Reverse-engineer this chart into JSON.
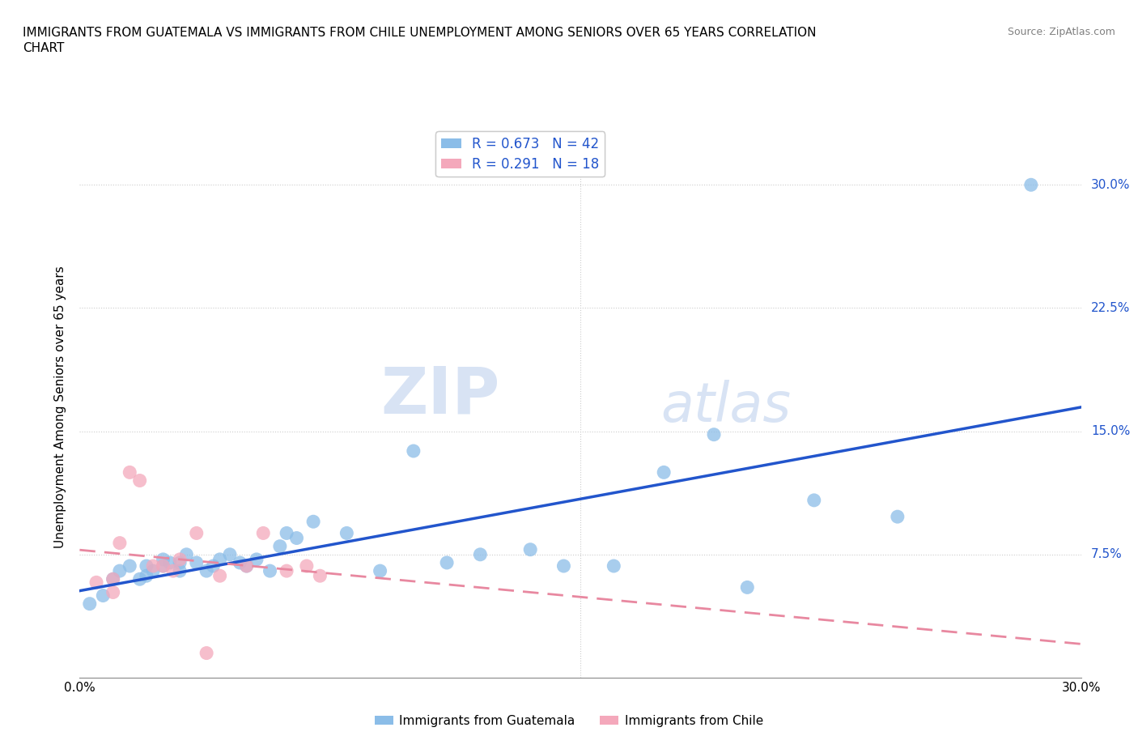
{
  "title": "IMMIGRANTS FROM GUATEMALA VS IMMIGRANTS FROM CHILE UNEMPLOYMENT AMONG SENIORS OVER 65 YEARS CORRELATION\nCHART",
  "source": "Source: ZipAtlas.com",
  "ylabel": "Unemployment Among Seniors over 65 years",
  "xlim": [
    0.0,
    0.3
  ],
  "ylim": [
    0.0,
    0.33
  ],
  "x_ticks": [
    0.0,
    0.05,
    0.1,
    0.15,
    0.2,
    0.25,
    0.3
  ],
  "y_ticks_right": [
    0.075,
    0.15,
    0.225,
    0.3
  ],
  "y_tick_labels_right": [
    "7.5%",
    "15.0%",
    "22.5%",
    "30.0%"
  ],
  "guatemala_color": "#8BBDE8",
  "chile_color": "#F4A8BB",
  "guatemala_line_color": "#2255CC",
  "chile_line_color": "#E888A0",
  "guatemala_R": 0.673,
  "guatemala_N": 42,
  "chile_R": 0.291,
  "chile_N": 18,
  "background_color": "#ffffff",
  "grid_color": "#cccccc",
  "watermark_zip": "ZIP",
  "watermark_atlas": "atlas",
  "legend_label_guatemala": "Immigrants from Guatemala",
  "legend_label_chile": "Immigrants from Chile",
  "guatemala_x": [
    0.003,
    0.007,
    0.01,
    0.012,
    0.015,
    0.018,
    0.02,
    0.02,
    0.022,
    0.025,
    0.025,
    0.027,
    0.03,
    0.03,
    0.032,
    0.035,
    0.038,
    0.04,
    0.042,
    0.045,
    0.048,
    0.05,
    0.053,
    0.057,
    0.06,
    0.062,
    0.065,
    0.07,
    0.08,
    0.09,
    0.1,
    0.11,
    0.12,
    0.135,
    0.145,
    0.16,
    0.175,
    0.19,
    0.2,
    0.22,
    0.245,
    0.285
  ],
  "guatemala_y": [
    0.045,
    0.05,
    0.06,
    0.065,
    0.068,
    0.06,
    0.062,
    0.068,
    0.065,
    0.068,
    0.072,
    0.07,
    0.065,
    0.07,
    0.075,
    0.07,
    0.065,
    0.068,
    0.072,
    0.075,
    0.07,
    0.068,
    0.072,
    0.065,
    0.08,
    0.088,
    0.085,
    0.095,
    0.088,
    0.065,
    0.138,
    0.07,
    0.075,
    0.078,
    0.068,
    0.068,
    0.125,
    0.148,
    0.055,
    0.108,
    0.098,
    0.3
  ],
  "chile_x": [
    0.005,
    0.01,
    0.012,
    0.015,
    0.018,
    0.022,
    0.025,
    0.028,
    0.03,
    0.035,
    0.038,
    0.042,
    0.05,
    0.055,
    0.062,
    0.068,
    0.072,
    0.01
  ],
  "chile_y": [
    0.058,
    0.06,
    0.082,
    0.125,
    0.12,
    0.068,
    0.068,
    0.065,
    0.072,
    0.088,
    0.015,
    0.062,
    0.068,
    0.088,
    0.065,
    0.068,
    0.062,
    0.052
  ]
}
